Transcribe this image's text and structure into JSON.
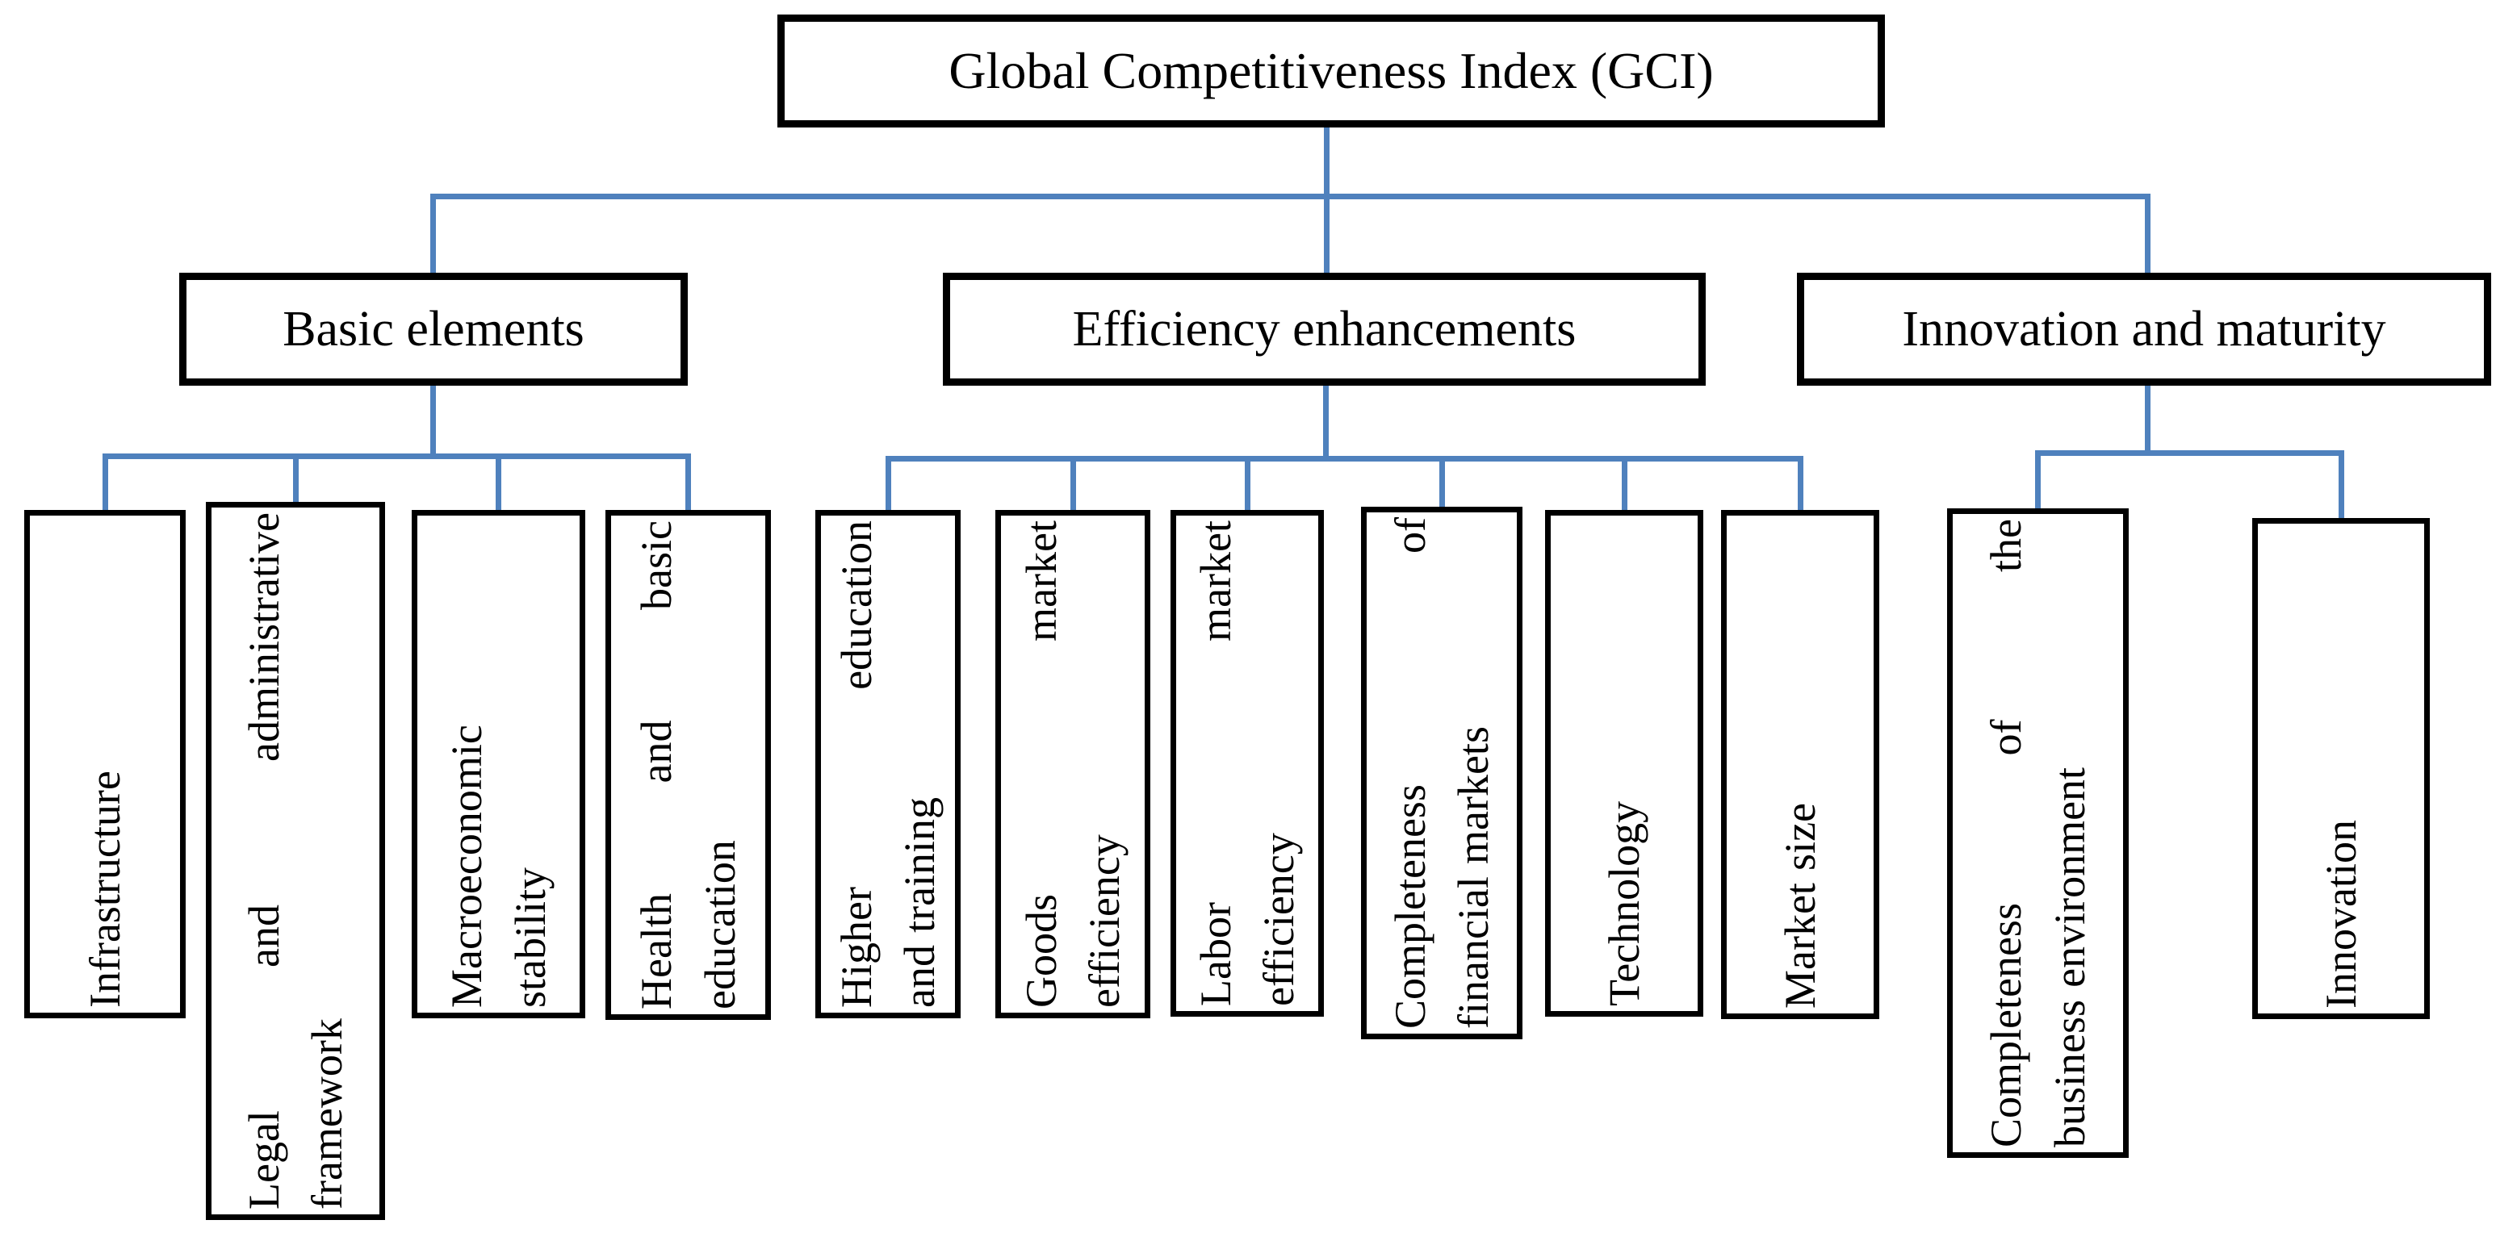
{
  "diagram": {
    "title": "Global Competitiveness Index (GCI)",
    "colors": {
      "connector": "#4F81BD",
      "box_border": "#000000",
      "box_fill": "#FFFFFF",
      "text": "#000000"
    },
    "branches": [
      {
        "label": "Basic elements",
        "children": [
          {
            "lines": [
              "Infrastructure"
            ]
          },
          {
            "lines": [
              "Legal and administrative",
              "framework"
            ]
          },
          {
            "lines": [
              "Macroeconomic",
              "stability"
            ]
          },
          {
            "lines": [
              "Health and basic",
              "education"
            ]
          }
        ]
      },
      {
        "label": "Efficiency enhancements",
        "children": [
          {
            "lines": [
              "Higher education",
              "and training"
            ]
          },
          {
            "lines": [
              "Goods market",
              "efficiency"
            ]
          },
          {
            "lines": [
              "Labor market",
              "efficiency"
            ]
          },
          {
            "lines": [
              "Completeness of",
              "financial markets"
            ]
          },
          {
            "lines": [
              "Technology"
            ]
          },
          {
            "lines": [
              "Market size"
            ]
          }
        ]
      },
      {
        "label": "Innovation and maturity",
        "children": [
          {
            "lines": [
              "Completeness of the",
              "business environment"
            ]
          },
          {
            "lines": [
              "Innovation"
            ]
          }
        ]
      }
    ]
  }
}
